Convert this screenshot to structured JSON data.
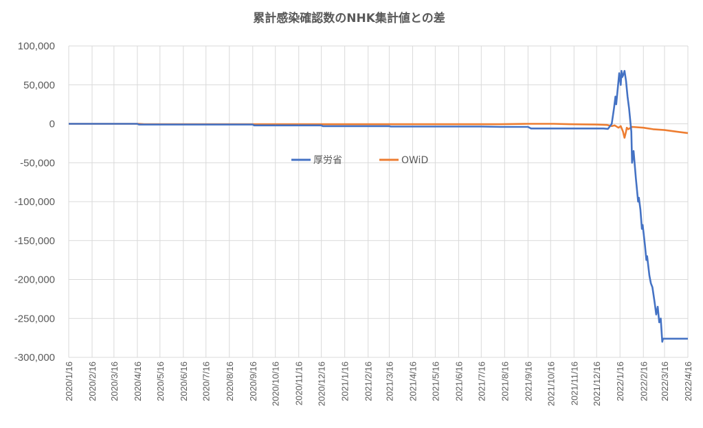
{
  "chart_data": {
    "type": "line",
    "title": "累計感染確認数のNHK集計値との差",
    "ylim": [
      -300000,
      100000
    ],
    "yticks": [
      100000,
      50000,
      0,
      -50000,
      -100000,
      -150000,
      -200000,
      -250000,
      -300000
    ],
    "ytick_labels": [
      "100,000",
      "50,000",
      "0",
      "-50,000",
      "-100,000",
      "-150,000",
      "-200,000",
      "-250,000",
      "-300,000"
    ],
    "xtick_labels": [
      "2020/1/16",
      "2020/2/16",
      "2020/3/16",
      "2020/4/16",
      "2020/5/16",
      "2020/6/16",
      "2020/7/16",
      "2020/8/16",
      "2020/9/16",
      "2020/10/16",
      "2020/11/16",
      "2020/12/16",
      "2021/1/16",
      "2021/2/16",
      "2021/3/16",
      "2021/4/16",
      "2021/5/16",
      "2021/6/16",
      "2021/7/16",
      "2021/8/16",
      "2021/9/16",
      "2021/10/16",
      "2021/11/16",
      "2021/12/16",
      "2022/1/16",
      "2022/2/16",
      "2022/3/16",
      "2022/4/16"
    ],
    "grid": true,
    "legend_position": "center",
    "series": [
      {
        "name": "厚労省",
        "color": "#4472c4",
        "points": [
          [
            "2020/1/16",
            0
          ],
          [
            "2020/4/16",
            0
          ],
          [
            "2020/4/18",
            -1000
          ],
          [
            "2020/9/16",
            -1000
          ],
          [
            "2020/9/18",
            -2000
          ],
          [
            "2020/12/16",
            -2000
          ],
          [
            "2020/12/18",
            -3000
          ],
          [
            "2021/3/16",
            -3000
          ],
          [
            "2021/3/18",
            -3500
          ],
          [
            "2021/7/16",
            -3500
          ],
          [
            "2021/8/10",
            -4000
          ],
          [
            "2021/9/16",
            -4000
          ],
          [
            "2021/9/20",
            -6000
          ],
          [
            "2021/12/25",
            -6000
          ],
          [
            "2021/12/31",
            -6500
          ],
          [
            "2022/1/2",
            -4000
          ],
          [
            "2022/1/5",
            0
          ],
          [
            "2022/1/8",
            20000
          ],
          [
            "2022/1/10",
            35000
          ],
          [
            "2022/1/11",
            25000
          ],
          [
            "2022/1/13",
            45000
          ],
          [
            "2022/1/15",
            65000
          ],
          [
            "2022/1/17",
            50000
          ],
          [
            "2022/1/18",
            68000
          ],
          [
            "2022/1/19",
            60000
          ],
          [
            "2022/1/20",
            62000
          ],
          [
            "2022/1/22",
            68000
          ],
          [
            "2022/1/24",
            55000
          ],
          [
            "2022/1/26",
            35000
          ],
          [
            "2022/1/28",
            20000
          ],
          [
            "2022/1/31",
            -10000
          ],
          [
            "2022/2/1",
            -50000
          ],
          [
            "2022/2/3",
            -35000
          ],
          [
            "2022/2/6",
            -70000
          ],
          [
            "2022/2/9",
            -100000
          ],
          [
            "2022/2/10",
            -95000
          ],
          [
            "2022/2/12",
            -110000
          ],
          [
            "2022/2/14",
            -135000
          ],
          [
            "2022/2/15",
            -130000
          ],
          [
            "2022/2/18",
            -155000
          ],
          [
            "2022/2/20",
            -175000
          ],
          [
            "2022/2/21",
            -170000
          ],
          [
            "2022/2/24",
            -195000
          ],
          [
            "2022/2/26",
            -205000
          ],
          [
            "2022/2/28",
            -210000
          ],
          [
            "2022/3/3",
            -230000
          ],
          [
            "2022/3/5",
            -245000
          ],
          [
            "2022/3/7",
            -235000
          ],
          [
            "2022/3/9",
            -255000
          ],
          [
            "2022/3/11",
            -250000
          ],
          [
            "2022/3/12",
            -265000
          ],
          [
            "2022/3/13",
            -280000
          ],
          [
            "2022/3/14",
            -276000
          ],
          [
            "2022/4/16",
            -276000
          ]
        ]
      },
      {
        "name": "OWiD",
        "color": "#ed7d31",
        "points": [
          [
            "2020/1/16",
            0
          ],
          [
            "2020/4/18",
            0
          ],
          [
            "2020/4/25",
            -500
          ],
          [
            "2020/8/20",
            -500
          ],
          [
            "2021/8/10",
            -500
          ],
          [
            "2021/9/16",
            0
          ],
          [
            "2021/10/20",
            0
          ],
          [
            "2021/11/10",
            -500
          ],
          [
            "2021/12/16",
            -1000
          ],
          [
            "2021/12/30",
            -1500
          ],
          [
            "2022/1/5",
            -3000
          ],
          [
            "2022/1/9",
            -2000
          ],
          [
            "2022/1/14",
            -5000
          ],
          [
            "2022/1/17",
            -3000
          ],
          [
            "2022/1/20",
            -10000
          ],
          [
            "2022/1/22",
            -18000
          ],
          [
            "2022/1/24",
            -10000
          ],
          [
            "2022/1/25",
            -5000
          ],
          [
            "2022/1/27",
            -7000
          ],
          [
            "2022/2/1",
            -4000
          ],
          [
            "2022/2/16",
            -5000
          ],
          [
            "2022/3/1",
            -7000
          ],
          [
            "2022/3/16",
            -8000
          ],
          [
            "2022/4/1",
            -10000
          ],
          [
            "2022/4/16",
            -12000
          ]
        ]
      }
    ]
  }
}
